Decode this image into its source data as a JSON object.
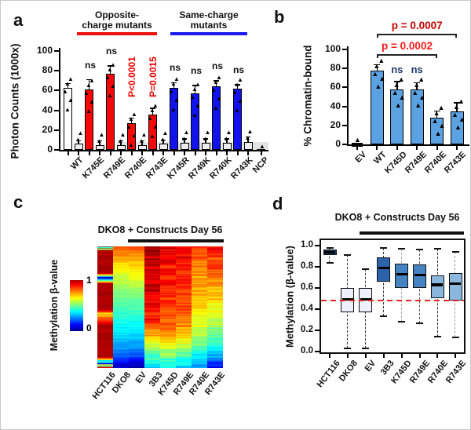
{
  "panels": {
    "a": "a",
    "b": "b",
    "c": "c",
    "d": "d"
  },
  "point_marker": "▲",
  "chart_data": [
    {
      "type": "bar",
      "panel": "a",
      "ylabel": "Photon Counts (1000x)",
      "ylim": [
        0,
        100
      ],
      "yticks": [
        100,
        80,
        60,
        40,
        20,
        0
      ],
      "categories": [
        "WT",
        "K745E",
        "R749E",
        "R740E",
        "R743E",
        "K745R",
        "R749K",
        "R740K",
        "R743K",
        "NCP"
      ],
      "groups": [
        {
          "lines": [
            "Opposite-",
            "charge mutants"
          ],
          "color": "#ee1111"
        },
        {
          "lines": [
            "Same-charge",
            "mutants"
          ],
          "color": "#1a1aee"
        }
      ],
      "series": [
        {
          "name": "construct",
          "values": [
            63,
            61,
            77,
            27,
            36,
            63,
            57,
            64,
            62,
            1
          ],
          "errors": [
            4,
            10,
            8,
            5,
            6,
            5,
            8,
            6,
            4,
            1
          ],
          "colors": [
            "#ffffff",
            "#f40808",
            "#f40808",
            "#f40808",
            "#f40808",
            "#1212ec",
            "#1212ec",
            "#1212ec",
            "#1212ec",
            "#222222"
          ]
        },
        {
          "name": "control",
          "values": [
            6,
            5,
            5,
            5,
            6,
            7,
            7,
            7,
            8,
            null
          ],
          "errors": [
            3,
            4,
            4,
            4,
            4,
            4,
            4,
            4,
            5,
            null
          ],
          "color": "#ededed"
        }
      ],
      "significance": [
        null,
        "ns",
        "ns",
        "P<0.0001",
        "P=0.0015",
        "ns",
        "ns",
        "ns",
        "ns",
        null
      ],
      "significance_colors": [
        null,
        "#111111",
        "#111111",
        "#ee0000",
        "#ee0000",
        "#111111",
        "#111111",
        "#111111",
        "#111111",
        null
      ]
    },
    {
      "type": "bar",
      "panel": "b",
      "ylabel": "% Chromatin-bound",
      "ylim": [
        0,
        100
      ],
      "yticks": [
        100,
        80,
        60,
        40,
        20,
        0
      ],
      "categories": [
        "EV",
        "WT",
        "K745D",
        "R749E",
        "R740E",
        "R743E"
      ],
      "values": [
        0,
        78,
        58,
        58,
        28,
        35
      ],
      "errors": [
        0,
        6,
        8,
        7,
        7,
        9
      ],
      "bar_color": "#5ba2e2",
      "ns_labels": [
        {
          "category_index": 2,
          "label": "ns"
        },
        {
          "category_index": 3,
          "label": "ns"
        }
      ],
      "ns_color": "#1e3a6e",
      "brackets": [
        {
          "label": "p = 0.0002",
          "color": "#ff1a1a",
          "from_index": 1,
          "to_index": 4
        },
        {
          "label": "p = 0.0007",
          "color": "#c80000",
          "from_index": 1,
          "to_index": 5
        }
      ]
    },
    {
      "type": "heatmap",
      "panel": "c",
      "title": "DKO8 + Constructs Day 56",
      "colorbar": {
        "label": "Methylation β-value",
        "top": "1",
        "bottom": "0"
      },
      "columns": [
        "HCT116",
        "DKO8",
        "EV",
        "3B3",
        "K745D",
        "R749E",
        "R740E",
        "R743E"
      ],
      "construct_span": [
        "EV",
        "R743E"
      ],
      "profiles": [
        [
          0.97,
          0.95,
          0.96,
          0.94,
          0.97,
          0.95,
          0.12,
          0.96,
          0.95,
          0.97,
          0.94,
          0.96,
          0.95,
          0.68,
          0.82,
          0.96,
          0.94,
          0.97,
          0.95,
          0.96,
          0.94,
          0.97,
          0.35,
          0.92
        ],
        [
          0.78,
          0.75,
          0.72,
          0.66,
          0.63,
          0.6,
          0.58,
          0.55,
          0.52,
          0.5,
          0.48,
          0.46,
          0.44,
          0.42,
          0.4,
          0.38,
          0.36,
          0.34,
          0.31,
          0.28,
          0.25,
          0.21,
          0.12,
          0.07
        ],
        [
          0.8,
          0.76,
          0.71,
          0.68,
          0.65,
          0.62,
          0.6,
          0.57,
          0.53,
          0.5,
          0.48,
          0.46,
          0.44,
          0.42,
          0.4,
          0.38,
          0.36,
          0.33,
          0.3,
          0.27,
          0.23,
          0.19,
          0.1,
          0.05
        ],
        [
          0.95,
          0.97,
          0.93,
          0.95,
          0.91,
          0.94,
          0.89,
          0.92,
          0.95,
          0.88,
          0.86,
          0.91,
          0.87,
          0.83,
          0.88,
          0.79,
          0.74,
          0.7,
          0.62,
          0.56,
          0.5,
          0.45,
          0.4,
          0.34
        ],
        [
          0.91,
          0.88,
          0.86,
          0.89,
          0.85,
          0.87,
          0.83,
          0.86,
          0.82,
          0.85,
          0.81,
          0.84,
          0.8,
          0.82,
          0.77,
          0.79,
          0.74,
          0.71,
          0.67,
          0.6,
          0.54,
          0.48,
          0.42,
          0.37
        ],
        [
          0.9,
          0.87,
          0.89,
          0.85,
          0.86,
          0.83,
          0.85,
          0.82,
          0.84,
          0.81,
          0.83,
          0.79,
          0.81,
          0.77,
          0.75,
          0.73,
          0.71,
          0.67,
          0.62,
          0.57,
          0.51,
          0.45,
          0.39,
          0.34
        ],
        [
          0.86,
          0.81,
          0.78,
          0.76,
          0.73,
          0.75,
          0.71,
          0.73,
          0.69,
          0.71,
          0.67,
          0.69,
          0.65,
          0.63,
          0.61,
          0.59,
          0.56,
          0.54,
          0.5,
          0.46,
          0.42,
          0.37,
          0.31,
          0.26
        ],
        [
          0.88,
          0.84,
          0.81,
          0.78,
          0.8,
          0.76,
          0.74,
          0.72,
          0.7,
          0.68,
          0.66,
          0.64,
          0.62,
          0.6,
          0.57,
          0.54,
          0.51,
          0.47,
          0.43,
          0.39,
          0.34,
          0.28,
          0.2,
          0.13
        ]
      ],
      "hct116_stripes": [
        {
          "f": 0.004,
          "v": 0.42
        },
        {
          "f": 0.018,
          "v": 0.55
        },
        {
          "f": 0.25,
          "v": 0.08
        },
        {
          "f": 0.545,
          "v": 0.65
        },
        {
          "f": 0.585,
          "v": 0.8
        },
        {
          "f": 0.935,
          "v": 0.35
        },
        {
          "f": 0.958,
          "v": 0.12
        },
        {
          "f": 0.978,
          "v": 0.45
        }
      ]
    },
    {
      "type": "boxplot",
      "panel": "d",
      "title": "DKO8 + Constructs Day 56",
      "ylabel": "Methylation (β-value)",
      "ylim": [
        0,
        1
      ],
      "yticks": [
        "1.0",
        "0.8",
        "0.6",
        "0.4",
        "0.2",
        "0.0"
      ],
      "refline": {
        "value": 0.48,
        "color": "#ee2222",
        "style": "dashed"
      },
      "categories": [
        "HCT116",
        "DKO8",
        "EV",
        "3B3",
        "K745D",
        "R749E",
        "R740E",
        "R743E"
      ],
      "boxes": [
        {
          "lo": 0.84,
          "q1": 0.91,
          "med": 0.94,
          "q3": 0.96,
          "hi": 0.98,
          "fill": "#17406e",
          "whisker": "#333333"
        },
        {
          "lo": 0.03,
          "q1": 0.37,
          "med": 0.49,
          "q3": 0.6,
          "hi": 0.91,
          "fill": "#eef1fb",
          "whisker": "#333333"
        },
        {
          "lo": 0.03,
          "q1": 0.37,
          "med": 0.49,
          "q3": 0.6,
          "hi": 0.78,
          "fill": "#eef1fb",
          "whisker": "#333333"
        },
        {
          "lo": 0.33,
          "q1": 0.66,
          "med": 0.79,
          "q3": 0.89,
          "hi": 0.98,
          "fill": "#2b63ac",
          "whisker": "#333333"
        },
        {
          "lo": 0.28,
          "q1": 0.6,
          "med": 0.73,
          "q3": 0.83,
          "hi": 0.97,
          "fill": "#4583c2",
          "whisker": "#aaaaaa"
        },
        {
          "lo": 0.27,
          "q1": 0.6,
          "med": 0.72,
          "q3": 0.82,
          "hi": 0.96,
          "fill": "#4583c2",
          "whisker": "#555555"
        },
        {
          "lo": 0.14,
          "q1": 0.5,
          "med": 0.63,
          "q3": 0.72,
          "hi": 0.97,
          "fill": "#8ab7de",
          "whisker": "#222222"
        },
        {
          "lo": 0.13,
          "q1": 0.48,
          "med": 0.64,
          "q3": 0.74,
          "hi": 0.94,
          "fill": "#8ab7de",
          "whisker": "#999999"
        }
      ],
      "construct_span": [
        "EV",
        "R743E"
      ]
    }
  ]
}
